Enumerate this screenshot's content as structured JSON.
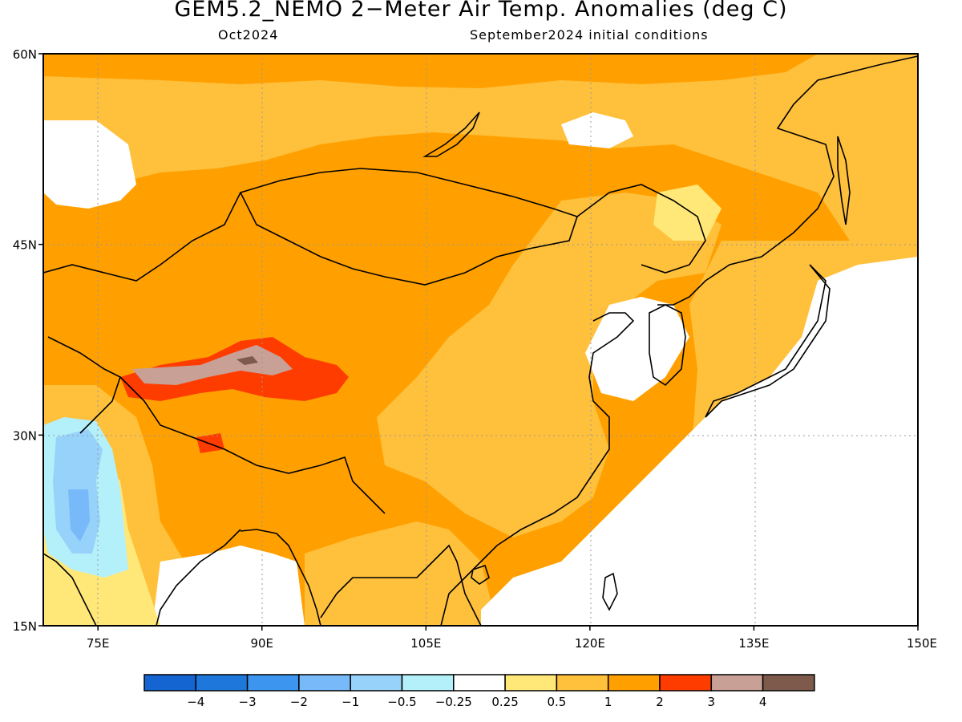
{
  "header": {
    "title": "GEM5.2_NEMO 2−Meter Air Temp. Anomalies (deg C)",
    "subtitle_left": "Oct2024",
    "subtitle_right": "September2024 initial conditions"
  },
  "map": {
    "variable": "2-meter air temperature anomaly",
    "units": "deg C",
    "lon_range": [
      70,
      150
    ],
    "lat_range": [
      15,
      60
    ],
    "lat_ticks": [
      {
        "value": 15,
        "label": "15N"
      },
      {
        "value": 30,
        "label": "30N"
      },
      {
        "value": 45,
        "label": "45N"
      },
      {
        "value": 60,
        "label": "60N"
      }
    ],
    "lon_ticks": [
      {
        "value": 75,
        "label": "75E"
      },
      {
        "value": 90,
        "label": "90E"
      },
      {
        "value": 105,
        "label": "105E"
      },
      {
        "value": 120,
        "label": "120E"
      },
      {
        "value": 135,
        "label": "135E"
      },
      {
        "value": 150,
        "label": "150E"
      }
    ],
    "gridlines": "dotted",
    "coastlines": true,
    "country_borders": true
  },
  "colorbar": {
    "colors": [
      "#1464d2",
      "#1e78dc",
      "#3c96f0",
      "#78b9fa",
      "#96d2fa",
      "#b4f0fa",
      "#ffffff",
      "#ffe878",
      "#ffc03c",
      "#ffa000",
      "#ff3c00",
      "#c8a096",
      "#7d5a4b"
    ],
    "tick_labels": [
      "−4",
      "−3",
      "−2",
      "−1",
      "−0.5",
      "−0.25",
      "0.25",
      "0.5",
      "1",
      "2",
      "3",
      "4"
    ]
  }
}
